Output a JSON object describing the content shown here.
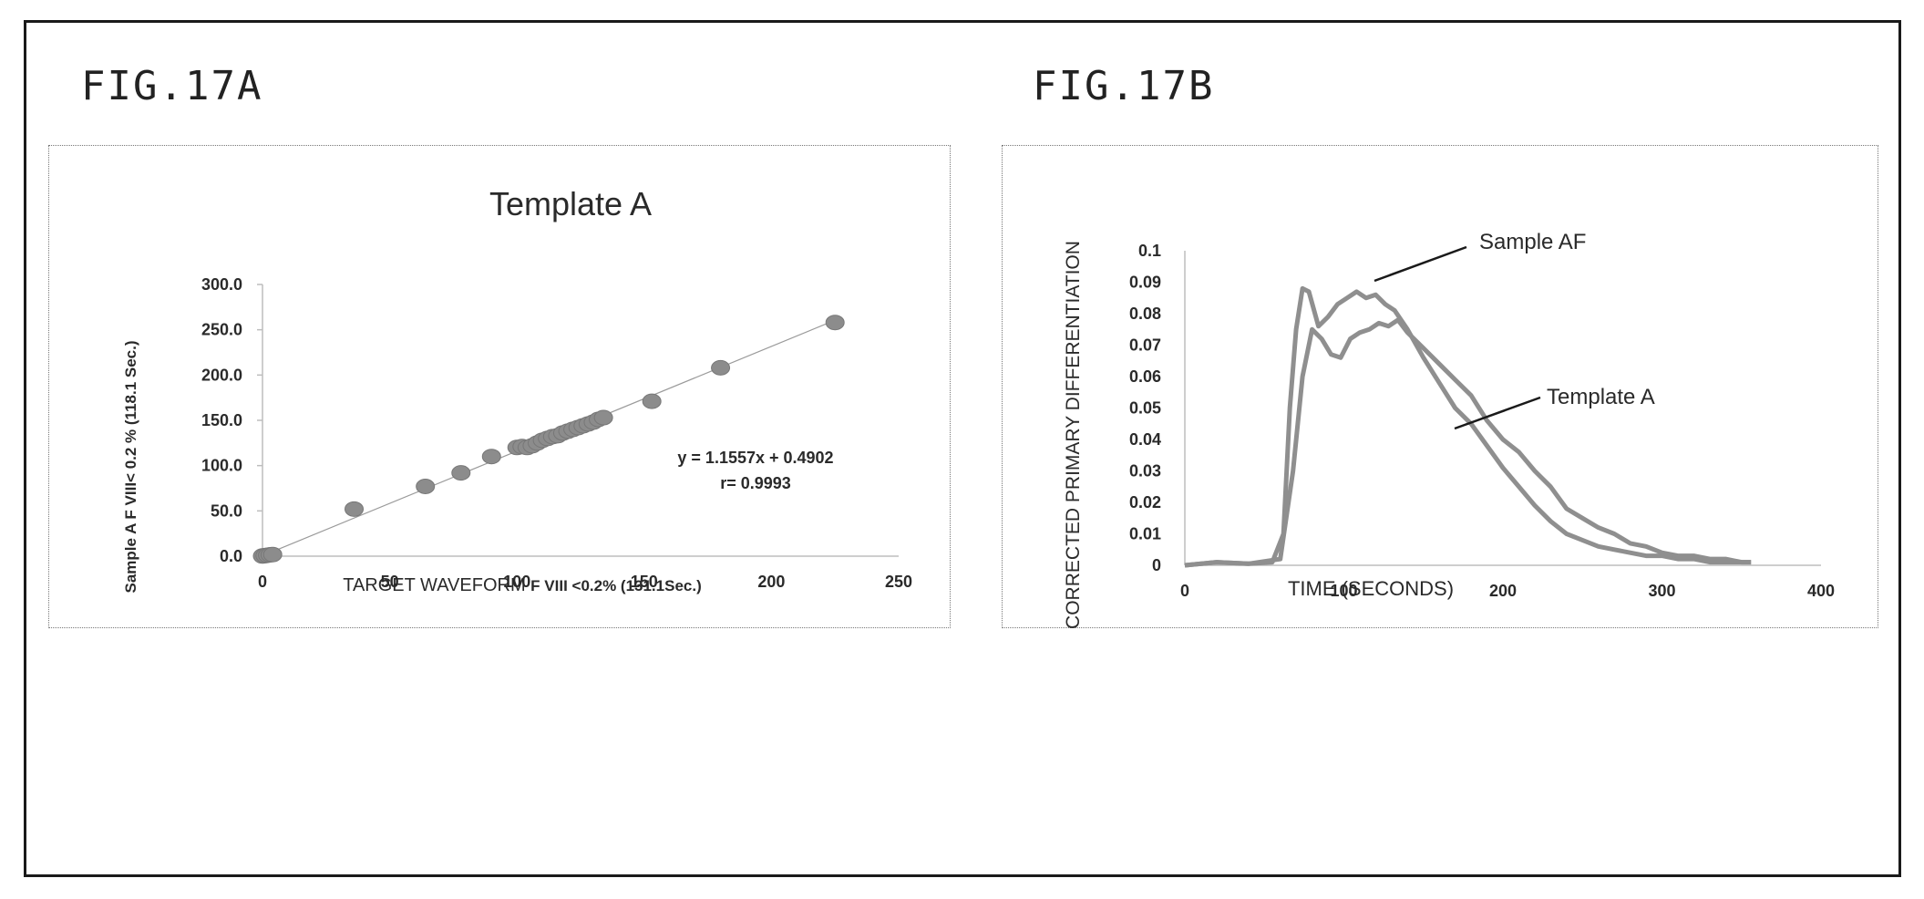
{
  "figures": {
    "a_label": "FIG.17A",
    "b_label": "FIG.17B"
  },
  "colors": {
    "marker": "#8c8c8c",
    "series": "#8f8f8f",
    "axis": "#bdbdbd",
    "text": "#2a2a2a"
  },
  "chart_data": [
    {
      "type": "scatter",
      "title": "Template A",
      "xlabel_plain": "TARGET WAVEFORM ",
      "xlabel_bold": "F VIII <0.2% (131.1Sec.)",
      "ylabel": "Sample A F VIII< 0.2 % (118.1 Sec.)",
      "xlim": [
        0,
        250
      ],
      "ylim": [
        0,
        300
      ],
      "x_ticks": [
        "0",
        "50",
        "100",
        "150",
        "200",
        "250"
      ],
      "y_ticks": [
        "0.0",
        "50.0",
        "100.0",
        "150.0",
        "200.0",
        "250.0",
        "300.0"
      ],
      "grid": false,
      "trendline": {
        "slope": 1.1557,
        "intercept": 0.4902
      },
      "equation_text": "y = 1.1557x + 0.4902",
      "r_text": "r= 0.9993",
      "points": [
        [
          0,
          0.2
        ],
        [
          1,
          0.6
        ],
        [
          2,
          1.0
        ],
        [
          3,
          1.5
        ],
        [
          4,
          1.8
        ],
        [
          36,
          52
        ],
        [
          64,
          77
        ],
        [
          78,
          92
        ],
        [
          90,
          110
        ],
        [
          100,
          120
        ],
        [
          102,
          121
        ],
        [
          104,
          120
        ],
        [
          106,
          122
        ],
        [
          108,
          125
        ],
        [
          110,
          128
        ],
        [
          112,
          130
        ],
        [
          114,
          132
        ],
        [
          116,
          133
        ],
        [
          118,
          136
        ],
        [
          120,
          138
        ],
        [
          122,
          140
        ],
        [
          124,
          142
        ],
        [
          126,
          144
        ],
        [
          128,
          146
        ],
        [
          130,
          148
        ],
        [
          132,
          151
        ],
        [
          134,
          153
        ],
        [
          153,
          171
        ],
        [
          180,
          208
        ],
        [
          225,
          258
        ]
      ]
    },
    {
      "type": "line",
      "xlabel": "TIME (SECONDS)",
      "ylabel": "CORRECTED PRIMARY DIFFERENTIATION",
      "xlim": [
        0,
        400
      ],
      "ylim": [
        0,
        0.1
      ],
      "x_ticks": [
        "0",
        "100",
        "200",
        "300",
        "400"
      ],
      "y_ticks": [
        "0",
        "0.01",
        "0.02",
        "0.03",
        "0.04",
        "0.05",
        "0.06",
        "0.07",
        "0.08",
        "0.09",
        "0.1"
      ],
      "grid": false,
      "series": [
        {
          "name": "Sample AF",
          "x": [
            0,
            20,
            40,
            55,
            62,
            66,
            70,
            74,
            78,
            84,
            90,
            96,
            102,
            108,
            114,
            120,
            126,
            132,
            140,
            150,
            160,
            170,
            180,
            190,
            200,
            210,
            220,
            230,
            240,
            250,
            260,
            270,
            280,
            290,
            300,
            310,
            320,
            330,
            340,
            350,
            356
          ],
          "y": [
            0,
            0.001,
            0.0005,
            0.001,
            0.01,
            0.05,
            0.075,
            0.088,
            0.087,
            0.076,
            0.079,
            0.083,
            0.085,
            0.087,
            0.085,
            0.086,
            0.083,
            0.081,
            0.075,
            0.066,
            0.058,
            0.05,
            0.045,
            0.038,
            0.031,
            0.025,
            0.019,
            0.014,
            0.01,
            0.008,
            0.006,
            0.005,
            0.004,
            0.003,
            0.003,
            0.002,
            0.002,
            0.001,
            0.001,
            0.001,
            0.001
          ]
        },
        {
          "name": "Template A",
          "x": [
            0,
            20,
            40,
            60,
            68,
            74,
            80,
            86,
            92,
            98,
            104,
            110,
            116,
            122,
            128,
            134,
            140,
            150,
            160,
            170,
            180,
            190,
            200,
            210,
            220,
            230,
            240,
            250,
            260,
            270,
            280,
            290,
            300,
            310,
            320,
            330,
            340,
            350,
            356
          ],
          "y": [
            0,
            0.001,
            0.0005,
            0.002,
            0.03,
            0.06,
            0.075,
            0.072,
            0.067,
            0.066,
            0.072,
            0.074,
            0.075,
            0.077,
            0.076,
            0.078,
            0.074,
            0.069,
            0.064,
            0.059,
            0.054,
            0.046,
            0.04,
            0.036,
            0.03,
            0.025,
            0.018,
            0.015,
            0.012,
            0.01,
            0.007,
            0.006,
            0.004,
            0.003,
            0.003,
            0.002,
            0.002,
            0.001,
            0.001
          ]
        }
      ]
    }
  ]
}
